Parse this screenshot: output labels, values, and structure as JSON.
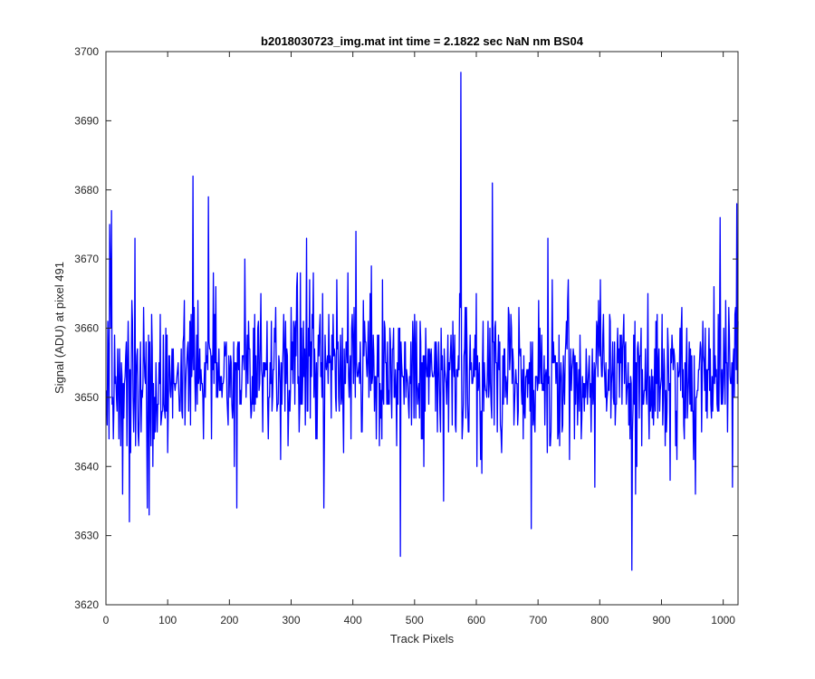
{
  "chart_data": {
    "type": "line",
    "title": "b2018030723_img.mat int time = 2.1822 sec  NaN nm BS04",
    "xlabel": "Track Pixels",
    "ylabel": "Signal (ADU) at pixel 491",
    "xlim": [
      0,
      1024
    ],
    "ylim": [
      3620,
      3700
    ],
    "xticks": [
      0,
      100,
      200,
      300,
      400,
      500,
      600,
      700,
      800,
      900,
      1000
    ],
    "yticks": [
      3620,
      3630,
      3640,
      3650,
      3660,
      3670,
      3680,
      3690,
      3700
    ],
    "grid": false,
    "box": true,
    "series": [
      {
        "color": "#0000ff",
        "x_start": 1,
        "x_step": 1,
        "baseline": 3653,
        "spread": 5,
        "seed": 491,
        "peaks": [
          {
            "x": 2,
            "y": 3646
          },
          {
            "x": 6,
            "y": 3675
          },
          {
            "x": 9,
            "y": 3677
          },
          {
            "x": 27,
            "y": 3636
          },
          {
            "x": 38,
            "y": 3632
          },
          {
            "x": 47,
            "y": 3673
          },
          {
            "x": 67,
            "y": 3634
          },
          {
            "x": 70,
            "y": 3633
          },
          {
            "x": 141,
            "y": 3682
          },
          {
            "x": 166,
            "y": 3679
          },
          {
            "x": 212,
            "y": 3634
          },
          {
            "x": 225,
            "y": 3670
          },
          {
            "x": 325,
            "y": 3673
          },
          {
            "x": 353,
            "y": 3634
          },
          {
            "x": 405,
            "y": 3674
          },
          {
            "x": 430,
            "y": 3669
          },
          {
            "x": 477,
            "y": 3627
          },
          {
            "x": 547,
            "y": 3635
          },
          {
            "x": 575,
            "y": 3697
          },
          {
            "x": 626,
            "y": 3681
          },
          {
            "x": 689,
            "y": 3631
          },
          {
            "x": 716,
            "y": 3673
          },
          {
            "x": 852,
            "y": 3625
          },
          {
            "x": 858,
            "y": 3636
          },
          {
            "x": 955,
            "y": 3636
          },
          {
            "x": 995,
            "y": 3676
          },
          {
            "x": 1015,
            "y": 3637
          },
          {
            "x": 1022,
            "y": 3678
          }
        ]
      }
    ]
  }
}
